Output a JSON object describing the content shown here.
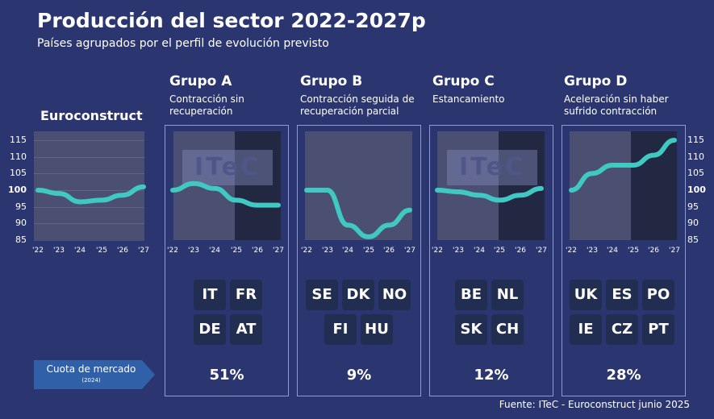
{
  "header": {
    "title": "Producción del sector 2022-2027p",
    "subtitle": "Países agrupados por el perfil de evolución previsto"
  },
  "euroconstruct": {
    "title": "Euroconstruct"
  },
  "groups": [
    {
      "name": "Grupo A",
      "description": "Contracción sin recuperación",
      "countries": [
        "IT",
        "FR",
        "DE",
        "AT"
      ],
      "share": "51%"
    },
    {
      "name": "Grupo B",
      "description": "Contracción seguida de recuperación parcial",
      "countries": [
        "SE",
        "DK",
        "NO",
        "FI",
        "HU"
      ],
      "share": "9%"
    },
    {
      "name": "Grupo C",
      "description": "Estancamiento",
      "countries": [
        "BE",
        "NL",
        "SK",
        "CH"
      ],
      "share": "12%"
    },
    {
      "name": "Grupo D",
      "description": "Aceleración sin haber sufrido contracción",
      "countries": [
        "UK",
        "ES",
        "PO",
        "IE",
        "CZ",
        "PT"
      ],
      "share": "28%"
    }
  ],
  "market_share": {
    "label": "Cuota de mercado",
    "year": "(2024)"
  },
  "watermark": "ITeC",
  "source": "Fuente: ITeC - Euroconstruct junio 2025",
  "colors": {
    "background": "#2b3670",
    "line": "#3fc9c2",
    "plot": "#4b5073",
    "forecast_shade": "#232842",
    "badge": "#222d52",
    "border": "#8e9ad6"
  },
  "chart_data": [
    {
      "type": "line",
      "title": "Euroconstruct",
      "categories": [
        "'22",
        "'23",
        "'24",
        "'25",
        "'26",
        "'27"
      ],
      "yticks": [
        85,
        90,
        95,
        100,
        105,
        110,
        115
      ],
      "ylim": [
        85,
        115
      ],
      "grid": true,
      "series": [
        {
          "values": [
            100,
            99,
            96.5,
            97,
            98.5,
            101
          ]
        }
      ]
    },
    {
      "type": "line",
      "title": "Grupo A",
      "categories": [
        "'22",
        "'23",
        "'24",
        "'25",
        "'26",
        "'27"
      ],
      "ylim": [
        85,
        115
      ],
      "forecast_from": "'26",
      "series": [
        {
          "values": [
            100,
            102,
            100.5,
            97,
            95.5,
            95.5
          ]
        }
      ]
    },
    {
      "type": "line",
      "title": "Grupo B",
      "categories": [
        "'22",
        "'23",
        "'24",
        "'25",
        "'26",
        "'27"
      ],
      "ylim": [
        85,
        115
      ],
      "series": [
        {
          "values": [
            100,
            100,
            89.5,
            86,
            89.5,
            94
          ]
        }
      ]
    },
    {
      "type": "line",
      "title": "Grupo C",
      "categories": [
        "'22",
        "'23",
        "'24",
        "'25",
        "'26",
        "'27"
      ],
      "ylim": [
        85,
        115
      ],
      "forecast_from": "'25",
      "series": [
        {
          "values": [
            100,
            99.5,
            98.5,
            97,
            98.5,
            100.5
          ]
        }
      ]
    },
    {
      "type": "line",
      "title": "Grupo D",
      "categories": [
        "'22",
        "'23",
        "'24",
        "'25",
        "'26",
        "'27"
      ],
      "yticks": [
        85,
        90,
        95,
        100,
        105,
        110,
        115
      ],
      "ylim": [
        85,
        115
      ],
      "forecast_from": "'25",
      "series": [
        {
          "values": [
            100,
            105,
            107.5,
            107.5,
            110.5,
            115
          ]
        }
      ]
    }
  ]
}
